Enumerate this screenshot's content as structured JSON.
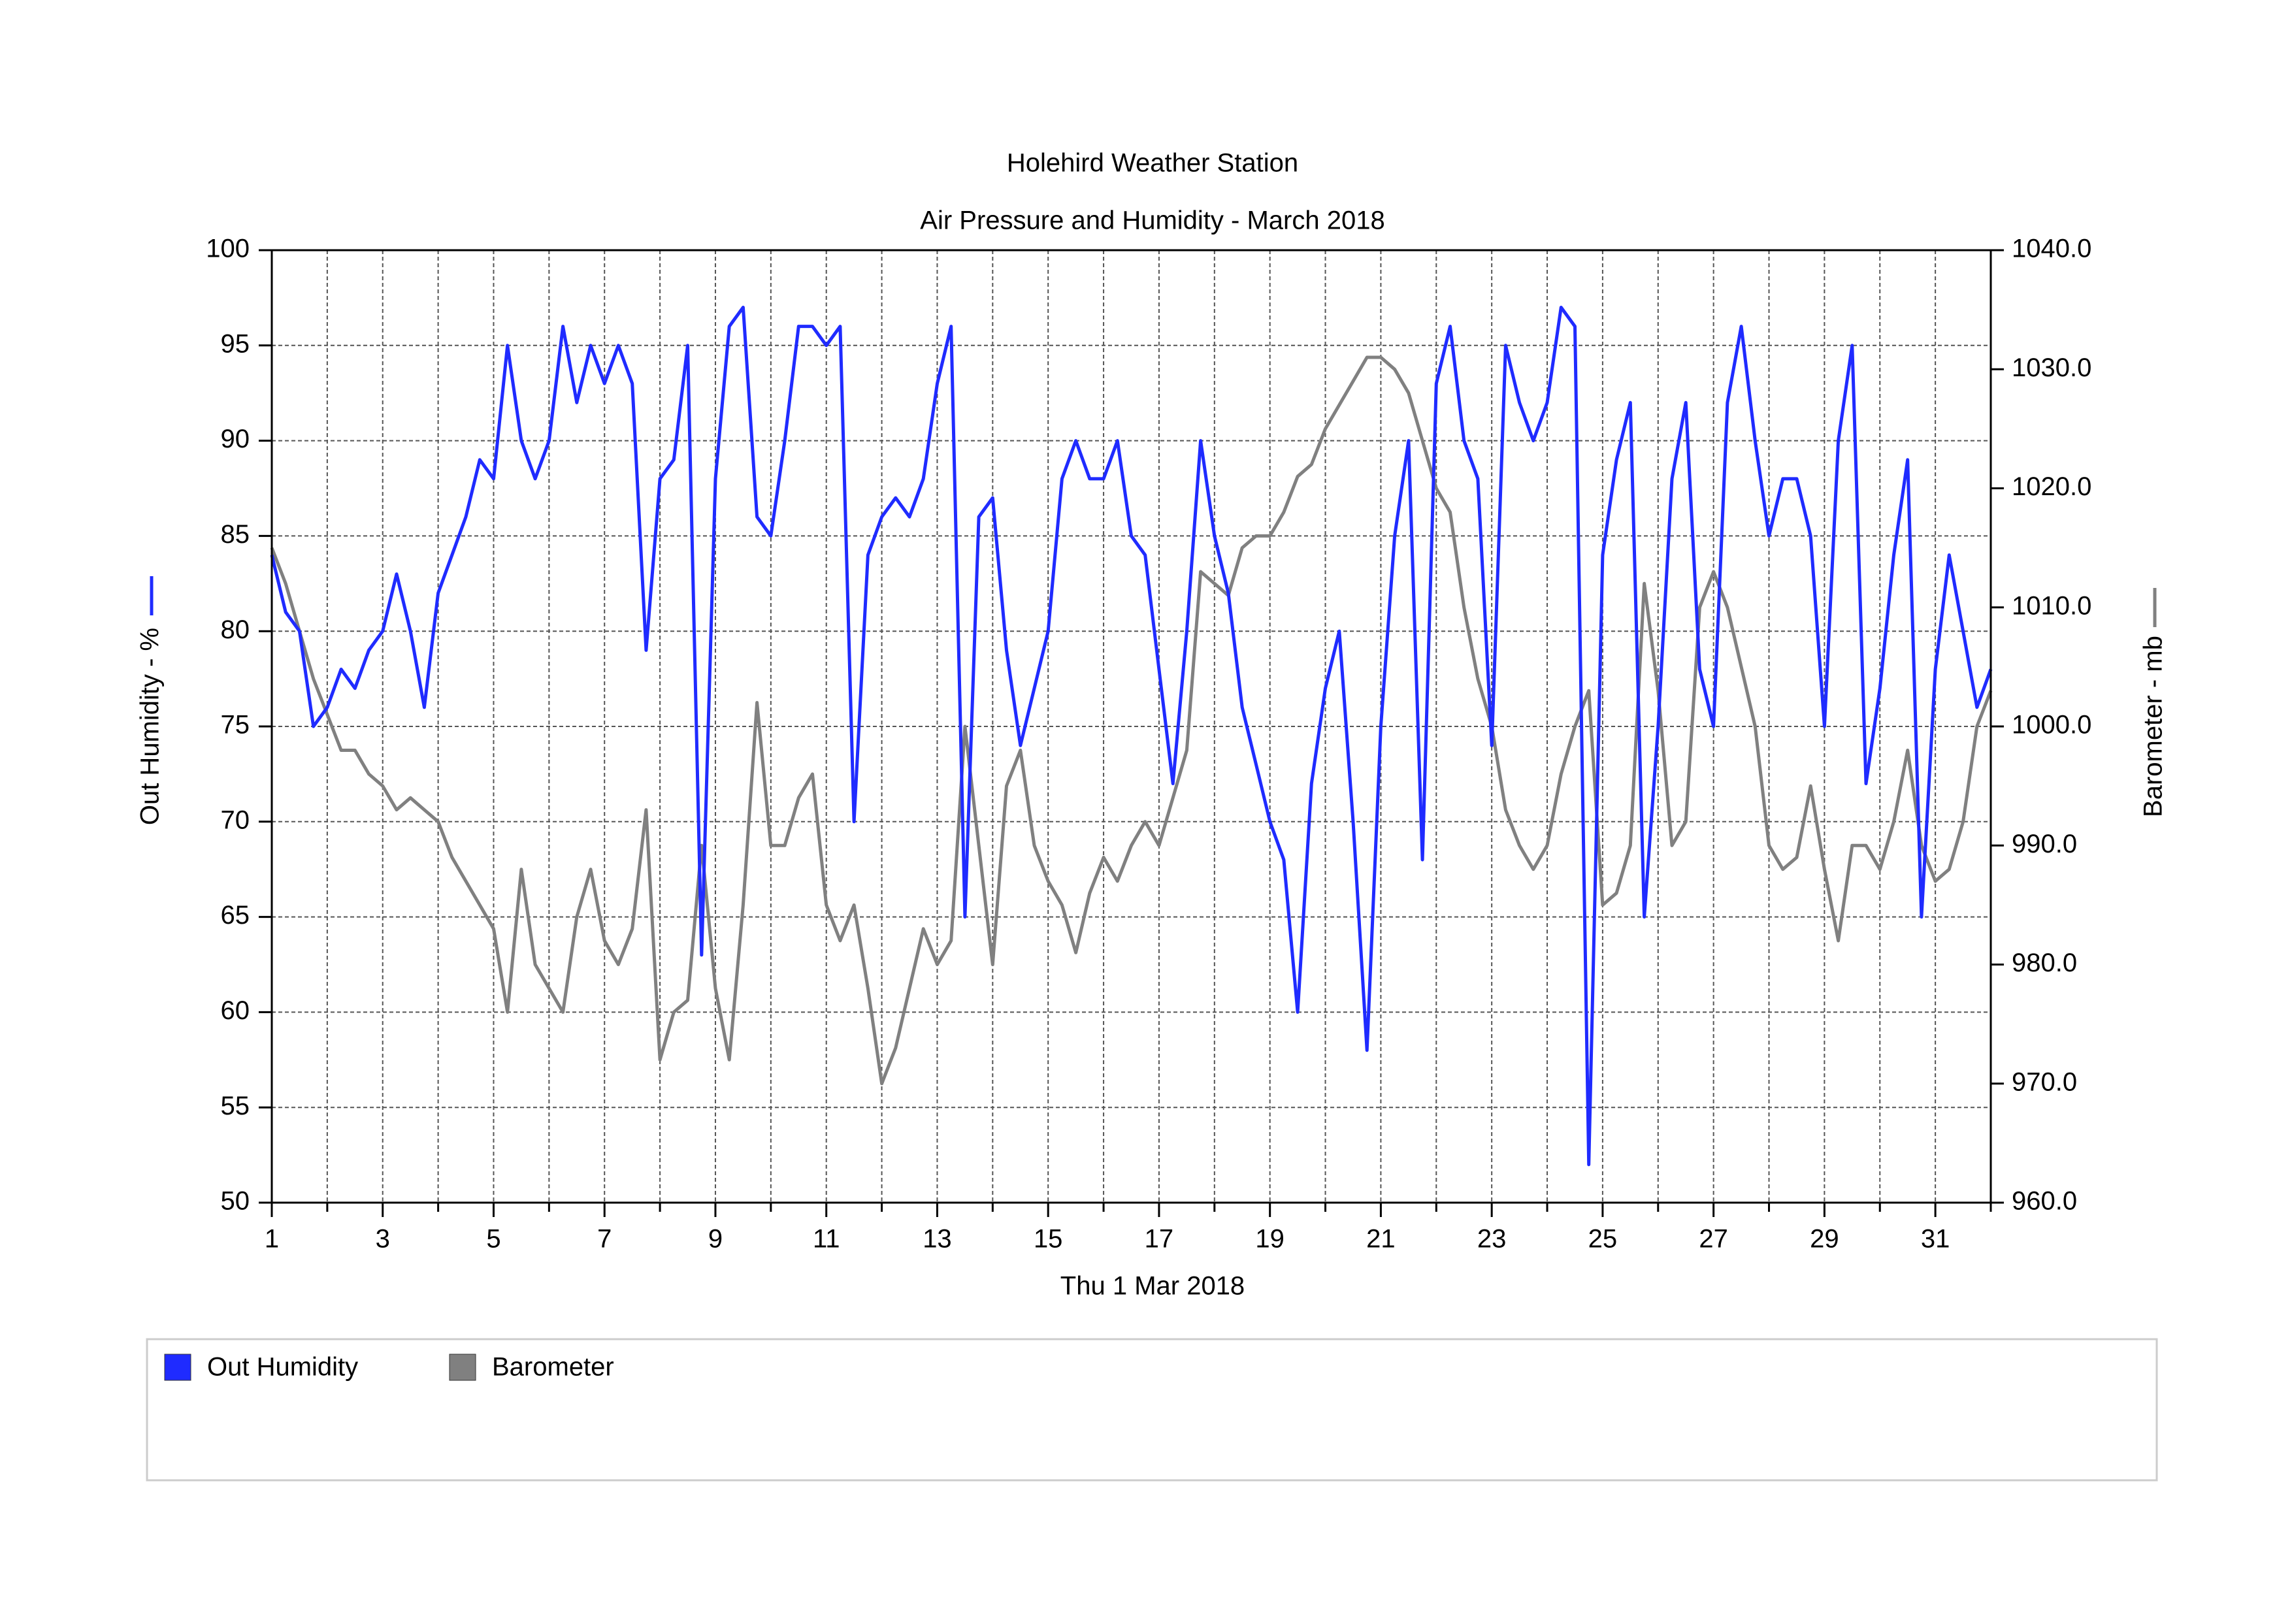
{
  "chart_data": {
    "type": "line",
    "title": "Holehird Weather Station",
    "subtitle": "Air Pressure and Humidity - March 2018",
    "xlabel": "Thu 1 Mar 2018",
    "ylabel": "Out Humidity - %",
    "y2label": "Barometer - mb",
    "xlim": [
      1,
      32
    ],
    "xticks": [
      1,
      3,
      5,
      7,
      9,
      11,
      13,
      15,
      17,
      19,
      21,
      23,
      25,
      27,
      29,
      31
    ],
    "x_minor_ticks": [
      2,
      4,
      6,
      8,
      10,
      12,
      14,
      16,
      18,
      20,
      22,
      24,
      26,
      28,
      30,
      32
    ],
    "ylim": [
      50,
      100
    ],
    "yticks": [
      50,
      55,
      60,
      65,
      70,
      75,
      80,
      85,
      90,
      95,
      100
    ],
    "y2lim": [
      960,
      1040
    ],
    "y2ticks": [
      {
        "value": 960,
        "label": "960.0"
      },
      {
        "value": 970,
        "label": "970.0"
      },
      {
        "value": 980,
        "label": "980.0"
      },
      {
        "value": 990,
        "label": "990.0"
      },
      {
        "value": 1000,
        "label": "1000.0"
      },
      {
        "value": 1010,
        "label": "1010.0"
      },
      {
        "value": 1020,
        "label": "1020.0"
      },
      {
        "value": 1030,
        "label": "1030.0"
      },
      {
        "value": 1040,
        "label": "1040.0"
      }
    ],
    "grid": true,
    "x": [
      1,
      1.25,
      1.5,
      1.75,
      2,
      2.25,
      2.5,
      2.75,
      3,
      3.25,
      3.5,
      3.75,
      4,
      4.25,
      4.5,
      4.75,
      5,
      5.25,
      5.5,
      5.75,
      6,
      6.25,
      6.5,
      6.75,
      7,
      7.25,
      7.5,
      7.75,
      8,
      8.25,
      8.5,
      8.75,
      9,
      9.25,
      9.5,
      9.75,
      10,
      10.25,
      10.5,
      10.75,
      11,
      11.25,
      11.5,
      11.75,
      12,
      12.25,
      12.5,
      12.75,
      13,
      13.25,
      13.5,
      13.75,
      14,
      14.25,
      14.5,
      14.75,
      15,
      15.25,
      15.5,
      15.75,
      16,
      16.25,
      16.5,
      16.75,
      17,
      17.25,
      17.5,
      17.75,
      18,
      18.25,
      18.5,
      18.75,
      19,
      19.25,
      19.5,
      19.75,
      20,
      20.25,
      20.5,
      20.75,
      21,
      21.25,
      21.5,
      21.75,
      22,
      22.25,
      22.5,
      22.75,
      23,
      23.25,
      23.5,
      23.75,
      24,
      24.25,
      24.5,
      24.75,
      25,
      25.25,
      25.5,
      25.75,
      26,
      26.25,
      26.5,
      26.75,
      27,
      27.25,
      27.5,
      27.75,
      28,
      28.25,
      28.5,
      28.75,
      29,
      29.25,
      29.5,
      29.75,
      30,
      30.25,
      30.5,
      30.75,
      31,
      31.25,
      31.5,
      31.75,
      32
    ],
    "series": [
      {
        "name": "Out Humidity",
        "color": "#1f2bff",
        "values": [
          84,
          81,
          80,
          75,
          76,
          78,
          77,
          79,
          80,
          83,
          80,
          76,
          82,
          84,
          86,
          89,
          88,
          95,
          90,
          88,
          90,
          96,
          92,
          95,
          93,
          95,
          93,
          79,
          88,
          89,
          95,
          63,
          88,
          96,
          97,
          86,
          85,
          90,
          96,
          96,
          95,
          96,
          70,
          84,
          86,
          87,
          86,
          88,
          93,
          96,
          65,
          86,
          87,
          79,
          74,
          77,
          80,
          88,
          90,
          88,
          88,
          90,
          85,
          84,
          78,
          72,
          80,
          90,
          85,
          82,
          76,
          73,
          70,
          68,
          60,
          72,
          77,
          80,
          70,
          58,
          75,
          85,
          90,
          68,
          93,
          96,
          90,
          88,
          74,
          95,
          92,
          90,
          92,
          97,
          96,
          52,
          84,
          89,
          92,
          65,
          75,
          88,
          92,
          78,
          75,
          92,
          96,
          90,
          85,
          88,
          88,
          85,
          75,
          90,
          95,
          72,
          77,
          84,
          89,
          65,
          78,
          84,
          80,
          76,
          78
        ]
      },
      {
        "name": "Barometer",
        "color": "#808080",
        "axis": "y2",
        "values": [
          1015,
          1012,
          1008,
          1004,
          1001,
          998,
          998,
          996,
          995,
          993,
          994,
          993,
          992,
          989,
          987,
          985,
          983,
          976,
          988,
          980,
          978,
          976,
          984,
          988,
          982,
          980,
          983,
          993,
          972,
          976,
          977,
          990,
          978,
          972,
          985,
          1002,
          990,
          990,
          994,
          996,
          985,
          982,
          985,
          978,
          970,
          973,
          978,
          983,
          980,
          982,
          1000,
          990,
          980,
          995,
          998,
          990,
          987,
          985,
          981,
          986,
          989,
          987,
          990,
          992,
          990,
          994,
          998,
          1013,
          1012,
          1011,
          1015,
          1016,
          1016,
          1018,
          1021,
          1022,
          1025,
          1027,
          1029,
          1031,
          1031,
          1030,
          1028,
          1024,
          1020,
          1018,
          1010,
          1004,
          1000,
          993,
          990,
          988,
          990,
          996,
          1000,
          1003,
          985,
          986,
          990,
          1012,
          1003,
          990,
          992,
          1010,
          1013,
          1010,
          1005,
          1000,
          990,
          988,
          989,
          995,
          988,
          982,
          990,
          990,
          988,
          992,
          998,
          990,
          987,
          988,
          992,
          1000,
          1003
        ]
      }
    ]
  }
}
